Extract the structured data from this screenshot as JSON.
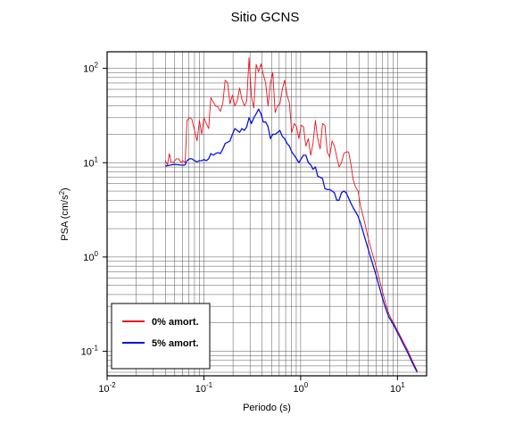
{
  "chart_data": {
    "type": "line",
    "title": "Sitio GCNS",
    "xlabel": "Periodo (s)",
    "ylabel_base": "PSA (cm/s",
    "ylabel_sup": "2",
    "ylabel_end": ")",
    "x_scale": "log",
    "y_scale": "log",
    "xlim": [
      0.01,
      20
    ],
    "ylim": [
      0.055,
      150
    ],
    "grid": true,
    "legend_position": "bottom-left",
    "x_ticks": [
      {
        "base": "10",
        "exp": "-2",
        "value": 0.01
      },
      {
        "base": "10",
        "exp": "-1",
        "value": 0.1
      },
      {
        "base": "10",
        "exp": "0",
        "value": 1
      },
      {
        "base": "10",
        "exp": "1",
        "value": 10
      }
    ],
    "y_ticks": [
      {
        "base": "10",
        "exp": "-1",
        "value": 0.1
      },
      {
        "base": "10",
        "exp": "0",
        "value": 1
      },
      {
        "base": "10",
        "exp": "1",
        "value": 10
      },
      {
        "base": "10",
        "exp": "2",
        "value": 100
      }
    ],
    "series": [
      {
        "name": "0% amort.",
        "color": "#e8141e",
        "points": [
          [
            0.04,
            10.5
          ],
          [
            0.042,
            9.5
          ],
          [
            0.044,
            12.5
          ],
          [
            0.046,
            10.0
          ],
          [
            0.049,
            10.2
          ],
          [
            0.052,
            11.0
          ],
          [
            0.055,
            11.0
          ],
          [
            0.058,
            10.0
          ],
          [
            0.061,
            10.5
          ],
          [
            0.064,
            10.0
          ],
          [
            0.067,
            28.0
          ],
          [
            0.071,
            30.0
          ],
          [
            0.075,
            29.0
          ],
          [
            0.08,
            22.0
          ],
          [
            0.085,
            17.0
          ],
          [
            0.09,
            28.0
          ],
          [
            0.095,
            20.0
          ],
          [
            0.1,
            30.0
          ],
          [
            0.106,
            26.0
          ],
          [
            0.112,
            23.0
          ],
          [
            0.118,
            49.0
          ],
          [
            0.125,
            44.0
          ],
          [
            0.132,
            40.0
          ],
          [
            0.14,
            39.0
          ],
          [
            0.148,
            35.0
          ],
          [
            0.157,
            43.0
          ],
          [
            0.166,
            75.0
          ],
          [
            0.176,
            70.0
          ],
          [
            0.186,
            42.0
          ],
          [
            0.197,
            52.0
          ],
          [
            0.209,
            40.0
          ],
          [
            0.221,
            45.0
          ],
          [
            0.234,
            62.0
          ],
          [
            0.247,
            47.0
          ],
          [
            0.262,
            40.0
          ],
          [
            0.277,
            45.0
          ],
          [
            0.293,
            130.0
          ],
          [
            0.31,
            50.0
          ],
          [
            0.328,
            38.0
          ],
          [
            0.347,
            110.0
          ],
          [
            0.367,
            92.0
          ],
          [
            0.389,
            112.0
          ],
          [
            0.411,
            86.0
          ],
          [
            0.435,
            70.0
          ],
          [
            0.46,
            40.0
          ],
          [
            0.487,
            70.0
          ],
          [
            0.515,
            90.0
          ],
          [
            0.545,
            34.0
          ],
          [
            0.577,
            40.0
          ],
          [
            0.61,
            42.0
          ],
          [
            0.646,
            60.0
          ],
          [
            0.683,
            75.0
          ],
          [
            0.723,
            52.0
          ],
          [
            0.765,
            43.0
          ],
          [
            0.809,
            21.0
          ],
          [
            0.856,
            26.0
          ],
          [
            0.906,
            24.0
          ],
          [
            0.958,
            18.0
          ],
          [
            1.01,
            25.0
          ],
          [
            1.07,
            24.0
          ],
          [
            1.13,
            15.0
          ],
          [
            1.2,
            18.0
          ],
          [
            1.27,
            12.0
          ],
          [
            1.34,
            16.0
          ],
          [
            1.42,
            28.0
          ],
          [
            1.5,
            18.0
          ],
          [
            1.59,
            14.0
          ],
          [
            1.68,
            26.0
          ],
          [
            1.78,
            25.0
          ],
          [
            1.88,
            13.0
          ],
          [
            1.99,
            11.5
          ],
          [
            2.11,
            17.0
          ],
          [
            2.23,
            15.0
          ],
          [
            2.36,
            11.5
          ],
          [
            2.49,
            9.0
          ],
          [
            2.64,
            10.0
          ],
          [
            2.79,
            12.5
          ],
          [
            2.95,
            13.0
          ],
          [
            3.13,
            13.0
          ],
          [
            3.31,
            9.5
          ],
          [
            3.5,
            6.5
          ],
          [
            3.7,
            5.5
          ],
          [
            3.92,
            5.0
          ],
          [
            4.14,
            3.5
          ],
          [
            4.38,
            2.8
          ],
          [
            4.64,
            2.2
          ],
          [
            4.91,
            1.7
          ],
          [
            5.19,
            1.35
          ],
          [
            5.49,
            1.1
          ],
          [
            5.81,
            0.9
          ],
          [
            6.15,
            0.72
          ],
          [
            6.5,
            0.58
          ],
          [
            6.88,
            0.46
          ],
          [
            7.28,
            0.37
          ],
          [
            7.7,
            0.3
          ],
          [
            8.15,
            0.25
          ],
          [
            8.62,
            0.22
          ],
          [
            9.12,
            0.2
          ],
          [
            9.65,
            0.178
          ],
          [
            10.2,
            0.16
          ],
          [
            10.8,
            0.143
          ],
          [
            11.4,
            0.128
          ],
          [
            12.1,
            0.114
          ],
          [
            12.8,
            0.102
          ],
          [
            13.5,
            0.09
          ],
          [
            14.3,
            0.079
          ],
          [
            15.1,
            0.07
          ],
          [
            16.0,
            0.062
          ]
        ]
      },
      {
        "name": "5% amort.",
        "color": "#0a14d8",
        "points": [
          [
            0.04,
            9.2
          ],
          [
            0.044,
            9.4
          ],
          [
            0.049,
            9.6
          ],
          [
            0.055,
            9.5
          ],
          [
            0.061,
            9.4
          ],
          [
            0.064,
            9.5
          ],
          [
            0.067,
            10.5
          ],
          [
            0.071,
            11.0
          ],
          [
            0.075,
            11.0
          ],
          [
            0.08,
            10.5
          ],
          [
            0.085,
            10.2
          ],
          [
            0.09,
            10.5
          ],
          [
            0.095,
            10.5
          ],
          [
            0.1,
            10.8
          ],
          [
            0.106,
            10.5
          ],
          [
            0.112,
            11.0
          ],
          [
            0.118,
            12.5
          ],
          [
            0.125,
            12.0
          ],
          [
            0.132,
            12.5
          ],
          [
            0.14,
            12.8
          ],
          [
            0.148,
            12.5
          ],
          [
            0.157,
            14.0
          ],
          [
            0.166,
            16.0
          ],
          [
            0.176,
            16.5
          ],
          [
            0.186,
            17.0
          ],
          [
            0.197,
            20.0
          ],
          [
            0.209,
            23.0
          ],
          [
            0.221,
            22.0
          ],
          [
            0.234,
            21.0
          ],
          [
            0.247,
            23.0
          ],
          [
            0.262,
            22.0
          ],
          [
            0.277,
            24.0
          ],
          [
            0.293,
            30.0
          ],
          [
            0.31,
            26.0
          ],
          [
            0.328,
            30.0
          ],
          [
            0.347,
            33.0
          ],
          [
            0.367,
            37.0
          ],
          [
            0.389,
            33.0
          ],
          [
            0.411,
            27.0
          ],
          [
            0.435,
            27.0
          ],
          [
            0.46,
            24.0
          ],
          [
            0.487,
            18.0
          ],
          [
            0.515,
            20.0
          ],
          [
            0.545,
            20.0
          ],
          [
            0.577,
            21.0
          ],
          [
            0.61,
            22.0
          ],
          [
            0.646,
            19.0
          ],
          [
            0.683,
            18.0
          ],
          [
            0.723,
            16.0
          ],
          [
            0.765,
            15.0
          ],
          [
            0.809,
            13.0
          ],
          [
            0.856,
            12.0
          ],
          [
            0.906,
            11.0
          ],
          [
            0.958,
            10.0
          ],
          [
            1.01,
            11.0
          ],
          [
            1.07,
            12.0
          ],
          [
            1.13,
            12.0
          ],
          [
            1.2,
            10.0
          ],
          [
            1.27,
            9.5
          ],
          [
            1.34,
            8.5
          ],
          [
            1.42,
            9.0
          ],
          [
            1.5,
            7.2
          ],
          [
            1.59,
            7.0
          ],
          [
            1.68,
            6.8
          ],
          [
            1.78,
            5.3
          ],
          [
            1.88,
            5.2
          ],
          [
            1.99,
            5.2
          ],
          [
            2.11,
            5.0
          ],
          [
            2.23,
            4.8
          ],
          [
            2.36,
            4.0
          ],
          [
            2.49,
            4.0
          ],
          [
            2.64,
            4.8
          ],
          [
            2.79,
            5.0
          ],
          [
            2.95,
            4.8
          ],
          [
            3.13,
            4.2
          ],
          [
            3.31,
            3.7
          ],
          [
            3.5,
            3.3
          ],
          [
            3.7,
            3.0
          ],
          [
            3.92,
            2.7
          ],
          [
            4.14,
            2.3
          ],
          [
            4.38,
            1.9
          ],
          [
            4.64,
            1.55
          ],
          [
            4.91,
            1.28
          ],
          [
            5.19,
            1.05
          ],
          [
            5.49,
            0.87
          ],
          [
            5.81,
            0.72
          ],
          [
            6.15,
            0.59
          ],
          [
            6.5,
            0.48
          ],
          [
            6.88,
            0.39
          ],
          [
            7.28,
            0.32
          ],
          [
            7.7,
            0.27
          ],
          [
            8.15,
            0.23
          ],
          [
            8.62,
            0.21
          ],
          [
            9.12,
            0.19
          ],
          [
            9.65,
            0.17
          ],
          [
            10.2,
            0.152
          ],
          [
            10.8,
            0.136
          ],
          [
            11.4,
            0.121
          ],
          [
            12.1,
            0.108
          ],
          [
            12.8,
            0.096
          ],
          [
            13.5,
            0.085
          ],
          [
            14.3,
            0.075
          ],
          [
            15.1,
            0.067
          ],
          [
            16.0,
            0.06
          ]
        ]
      }
    ]
  }
}
